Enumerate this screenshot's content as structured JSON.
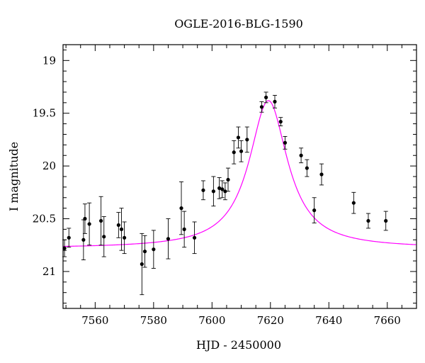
{
  "chart_data": {
    "type": "scatter",
    "title": "OGLE-2016-BLG-1590",
    "xlabel": "HJD - 2450000",
    "ylabel": "I magnitude",
    "xlim": [
      7549,
      7670
    ],
    "ylim": [
      21.35,
      18.85
    ],
    "y_inverted": true,
    "x_ticks": [
      7560,
      7580,
      7600,
      7620,
      7640,
      7660
    ],
    "y_ticks": [
      19,
      19.5,
      20,
      20.5,
      21
    ],
    "x_tick_labels": [
      "7560",
      "7580",
      "7600",
      "7620",
      "7640",
      "7660"
    ],
    "y_tick_labels": [
      "19",
      "19.5",
      "20",
      "20.5",
      "21"
    ],
    "grid": false,
    "series": [
      {
        "type": "scatter_errorbar",
        "color": "#000000",
        "points": [
          {
            "x": 7549.5,
            "y": 20.78,
            "err": 0.08
          },
          {
            "x": 7551.0,
            "y": 20.68,
            "err": 0.09
          },
          {
            "x": 7556.0,
            "y": 20.7,
            "err": 0.19
          },
          {
            "x": 7556.5,
            "y": 20.5,
            "err": 0.14
          },
          {
            "x": 7558.0,
            "y": 20.55,
            "err": 0.2
          },
          {
            "x": 7562.0,
            "y": 20.52,
            "err": 0.23
          },
          {
            "x": 7563.0,
            "y": 20.67,
            "err": 0.19
          },
          {
            "x": 7568.0,
            "y": 20.56,
            "err": 0.12
          },
          {
            "x": 7569.0,
            "y": 20.6,
            "err": 0.2
          },
          {
            "x": 7570.0,
            "y": 20.68,
            "err": 0.15
          },
          {
            "x": 7576.0,
            "y": 20.93,
            "err": 0.29
          },
          {
            "x": 7577.0,
            "y": 20.81,
            "err": 0.15
          },
          {
            "x": 7580.0,
            "y": 20.79,
            "err": 0.18
          },
          {
            "x": 7585.0,
            "y": 20.69,
            "err": 0.19
          },
          {
            "x": 7589.5,
            "y": 20.4,
            "err": 0.25
          },
          {
            "x": 7590.5,
            "y": 20.6,
            "err": 0.17
          },
          {
            "x": 7594.0,
            "y": 20.68,
            "err": 0.15
          },
          {
            "x": 7597.0,
            "y": 20.23,
            "err": 0.09
          },
          {
            "x": 7600.5,
            "y": 20.24,
            "err": 0.14
          },
          {
            "x": 7602.5,
            "y": 20.21,
            "err": 0.1
          },
          {
            "x": 7603.5,
            "y": 20.22,
            "err": 0.08
          },
          {
            "x": 7604.5,
            "y": 20.24,
            "err": 0.08
          },
          {
            "x": 7605.5,
            "y": 20.13,
            "err": 0.11
          },
          {
            "x": 7607.5,
            "y": 19.87,
            "err": 0.11
          },
          {
            "x": 7609.0,
            "y": 19.73,
            "err": 0.1
          },
          {
            "x": 7610.0,
            "y": 19.86,
            "err": 0.1
          },
          {
            "x": 7612.0,
            "y": 19.75,
            "err": 0.12
          },
          {
            "x": 7617.0,
            "y": 19.44,
            "err": 0.05
          },
          {
            "x": 7618.5,
            "y": 19.35,
            "err": 0.05
          },
          {
            "x": 7621.5,
            "y": 19.39,
            "err": 0.06
          },
          {
            "x": 7623.5,
            "y": 19.58,
            "err": 0.04
          },
          {
            "x": 7625.0,
            "y": 19.78,
            "err": 0.06
          },
          {
            "x": 7630.5,
            "y": 19.9,
            "err": 0.07
          },
          {
            "x": 7632.5,
            "y": 20.02,
            "err": 0.08
          },
          {
            "x": 7635.0,
            "y": 20.42,
            "err": 0.12
          },
          {
            "x": 7637.5,
            "y": 20.08,
            "err": 0.1
          },
          {
            "x": 7648.5,
            "y": 20.35,
            "err": 0.1
          },
          {
            "x": 7653.5,
            "y": 20.52,
            "err": 0.07
          },
          {
            "x": 7659.5,
            "y": 20.52,
            "err": 0.09
          }
        ]
      },
      {
        "type": "model_curve",
        "color": "#ff00ff",
        "t0": 7619.3,
        "peak": 19.38,
        "baseline": 20.78,
        "tE": 8.0
      }
    ]
  }
}
